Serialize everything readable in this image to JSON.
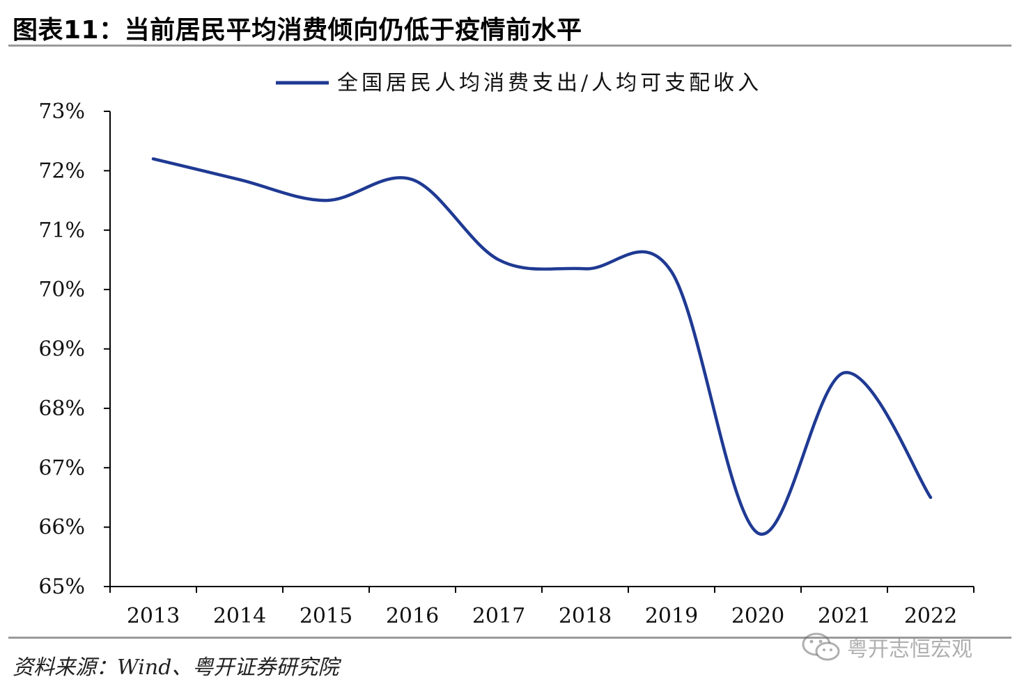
{
  "figure": {
    "title": "图表11：当前居民平均消费倾向仍低于疫情前水平",
    "source": "资料来源：Wind、粤开证券研究院",
    "watermark": {
      "text": "粤开志恒宏观",
      "icon": "wechat-icon"
    }
  },
  "chart_data": {
    "type": "line",
    "title": "",
    "xlabel": "",
    "ylabel": "",
    "categories": [
      "2013",
      "2014",
      "2015",
      "2016",
      "2017",
      "2018",
      "2019",
      "2020",
      "2021",
      "2022"
    ],
    "series": [
      {
        "name": "全国居民人均消费支出/人均可支配收入",
        "color": "#1f3a93",
        "values": [
          72.2,
          71.85,
          71.5,
          71.85,
          70.5,
          70.35,
          70.3,
          65.9,
          68.6,
          66.5
        ]
      }
    ],
    "ylim": [
      65,
      73
    ],
    "yticks": [
      "65%",
      "66%",
      "67%",
      "68%",
      "69%",
      "70%",
      "71%",
      "72%",
      "73%"
    ],
    "grid": false,
    "legend": "top-center"
  }
}
